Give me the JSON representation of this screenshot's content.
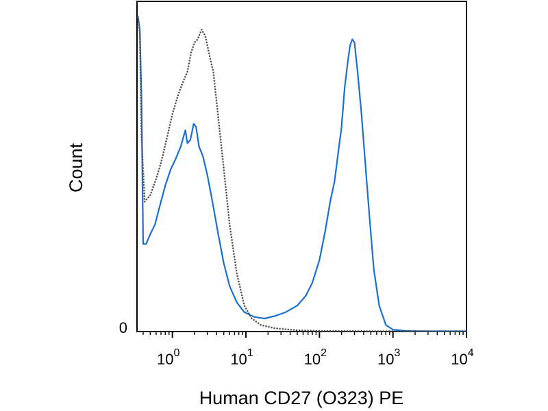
{
  "chart_data": {
    "type": "line",
    "title": "",
    "xlabel": "Human CD27 (O323) PE",
    "ylabel": "Count",
    "x_scale": "log",
    "xlim": [
      0.33,
      10000
    ],
    "ylim": [
      0,
      100
    ],
    "x_ticks": [
      {
        "value": 1,
        "base": "10",
        "exp": "0"
      },
      {
        "value": 10,
        "base": "10",
        "exp": "1"
      },
      {
        "value": 100,
        "base": "10",
        "exp": "2"
      },
      {
        "value": 1000,
        "base": "10",
        "exp": "3"
      },
      {
        "value": 10000,
        "base": "10",
        "exp": "4"
      }
    ],
    "y_ticks": [
      {
        "value": 0,
        "label": "0"
      }
    ],
    "grid": false,
    "series": [
      {
        "name": "",
        "color": "#1a6fd1",
        "style": "solid",
        "points": [
          [
            0.34,
            97
          ],
          [
            0.36,
            93
          ],
          [
            0.38,
            72
          ],
          [
            0.4,
            27
          ],
          [
            0.44,
            27
          ],
          [
            0.5,
            30
          ],
          [
            0.58,
            33
          ],
          [
            0.68,
            39
          ],
          [
            0.8,
            45
          ],
          [
            0.95,
            50
          ],
          [
            1.1,
            53
          ],
          [
            1.3,
            57
          ],
          [
            1.5,
            62
          ],
          [
            1.6,
            58
          ],
          [
            1.75,
            59
          ],
          [
            1.95,
            64
          ],
          [
            2.1,
            63
          ],
          [
            2.3,
            57
          ],
          [
            2.6,
            54
          ],
          [
            3.0,
            48
          ],
          [
            3.5,
            40
          ],
          [
            4.2,
            30
          ],
          [
            5.0,
            21
          ],
          [
            6.0,
            14
          ],
          [
            7.5,
            9
          ],
          [
            9.5,
            6
          ],
          [
            13,
            4.5
          ],
          [
            18,
            4
          ],
          [
            25,
            4.8
          ],
          [
            35,
            6
          ],
          [
            50,
            8
          ],
          [
            65,
            11
          ],
          [
            80,
            15
          ],
          [
            100,
            22
          ],
          [
            120,
            31
          ],
          [
            140,
            40
          ],
          [
            160,
            46
          ],
          [
            180,
            55
          ],
          [
            200,
            63
          ],
          [
            220,
            75
          ],
          [
            240,
            82
          ],
          [
            260,
            88
          ],
          [
            280,
            90
          ],
          [
            300,
            89
          ],
          [
            330,
            80
          ],
          [
            370,
            68
          ],
          [
            420,
            52
          ],
          [
            480,
            35
          ],
          [
            550,
            19
          ],
          [
            650,
            8
          ],
          [
            800,
            2
          ],
          [
            1000,
            0.6
          ],
          [
            1500,
            0.2
          ],
          [
            3000,
            0.1
          ],
          [
            10000,
            0.1
          ]
        ]
      },
      {
        "name": "",
        "color": "#555555",
        "style": "dotted",
        "points": [
          [
            0.34,
            97
          ],
          [
            0.36,
            92
          ],
          [
            0.38,
            60
          ],
          [
            0.42,
            40
          ],
          [
            0.5,
            42
          ],
          [
            0.6,
            47
          ],
          [
            0.7,
            52
          ],
          [
            0.85,
            60
          ],
          [
            1.0,
            67
          ],
          [
            1.2,
            73
          ],
          [
            1.4,
            77
          ],
          [
            1.6,
            80
          ],
          [
            1.8,
            86
          ],
          [
            2.0,
            89
          ],
          [
            2.2,
            90
          ],
          [
            2.5,
            93
          ],
          [
            2.8,
            91
          ],
          [
            3.2,
            85
          ],
          [
            3.6,
            80
          ],
          [
            4.2,
            66
          ],
          [
            5.0,
            50
          ],
          [
            6.0,
            33
          ],
          [
            7.5,
            18
          ],
          [
            9.5,
            8
          ],
          [
            12,
            4
          ],
          [
            16,
            2
          ],
          [
            25,
            1
          ],
          [
            50,
            0.4
          ],
          [
            100,
            0.2
          ],
          [
            500,
            0.1
          ],
          [
            10000,
            0.1
          ]
        ]
      }
    ]
  }
}
